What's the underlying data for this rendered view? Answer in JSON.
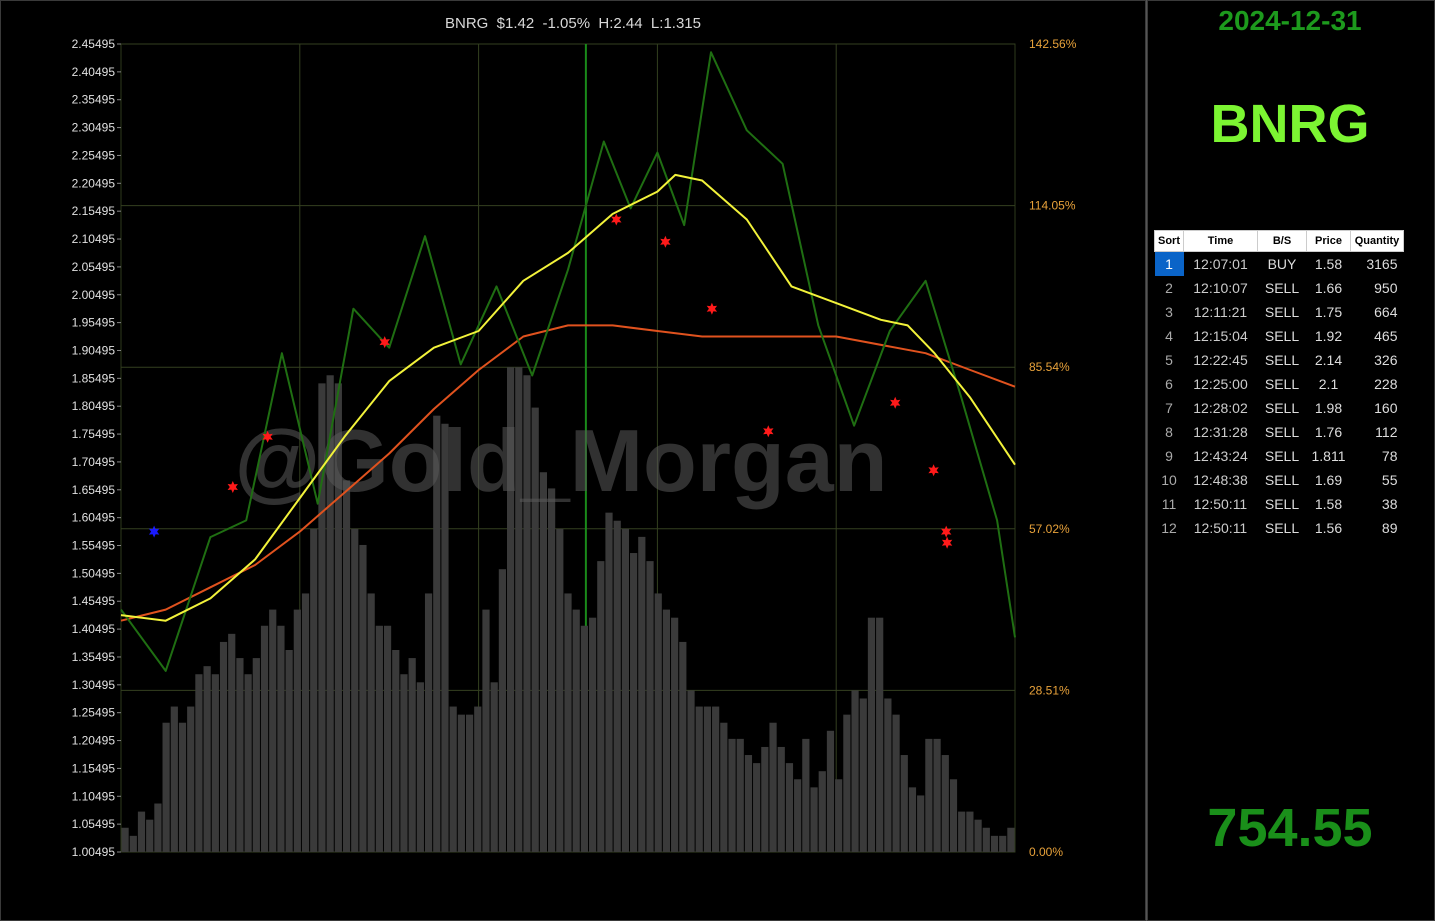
{
  "chart_title": "BNRG  $1.42  -1.05%  H:2.44  L:1.315",
  "watermark": "@Gold_Morgan",
  "side": {
    "date": "2024-12-31",
    "ticker": "BNRG",
    "value": "754.55"
  },
  "table": {
    "headers": [
      "Sort",
      "Time",
      "B/S",
      "Price",
      "Quantity"
    ],
    "rows": [
      {
        "sort": "1",
        "time": "12:07:01",
        "bs": "BUY",
        "price": "1.58",
        "qty": "3165"
      },
      {
        "sort": "2",
        "time": "12:10:07",
        "bs": "SELL",
        "price": "1.66",
        "qty": "950"
      },
      {
        "sort": "3",
        "time": "12:11:21",
        "bs": "SELL",
        "price": "1.75",
        "qty": "664"
      },
      {
        "sort": "4",
        "time": "12:15:04",
        "bs": "SELL",
        "price": "1.92",
        "qty": "465"
      },
      {
        "sort": "5",
        "time": "12:22:45",
        "bs": "SELL",
        "price": "2.14",
        "qty": "326"
      },
      {
        "sort": "6",
        "time": "12:25:00",
        "bs": "SELL",
        "price": "2.1",
        "qty": "228"
      },
      {
        "sort": "7",
        "time": "12:28:02",
        "bs": "SELL",
        "price": "1.98",
        "qty": "160"
      },
      {
        "sort": "8",
        "time": "12:31:28",
        "bs": "SELL",
        "price": "1.76",
        "qty": "112"
      },
      {
        "sort": "9",
        "time": "12:43:24",
        "bs": "SELL",
        "price": "1.811",
        "qty": "78"
      },
      {
        "sort": "10",
        "time": "12:48:38",
        "bs": "SELL",
        "price": "1.69",
        "qty": "55"
      },
      {
        "sort": "11",
        "time": "12:50:11",
        "bs": "SELL",
        "price": "1.58",
        "qty": "38"
      },
      {
        "sort": "12",
        "time": "12:50:11",
        "bs": "SELL",
        "price": "1.56",
        "qty": "89"
      }
    ]
  },
  "colors": {
    "price": "#1f6e12",
    "ma_fast": "#f2f23a",
    "ma_slow": "#e0521e",
    "volume": "#3a3a3a",
    "buy": "#1a1aff",
    "sell": "#ff1a1a",
    "right_axis": "#e8a23a",
    "grid": "#344020"
  },
  "chart_data": {
    "type": "line",
    "y_left_ticks": [
      "2.45495",
      "2.40495",
      "2.35495",
      "2.30495",
      "2.25495",
      "2.20495",
      "2.15495",
      "2.10495",
      "2.05495",
      "2.00495",
      "1.95495",
      "1.90495",
      "1.85495",
      "1.80495",
      "1.75495",
      "1.70495",
      "1.65495",
      "1.60495",
      "1.55495",
      "1.50495",
      "1.45495",
      "1.40495",
      "1.35495",
      "1.30495",
      "1.25495",
      "1.20495",
      "1.15495",
      "1.10495",
      "1.05495",
      "1.00495"
    ],
    "y_right_ticks": [
      "142.56%",
      "114.05%",
      "85.54%",
      "57.02%",
      "28.51%",
      "0.00%"
    ],
    "ylim": [
      1.00495,
      2.45495
    ],
    "x": [
      0,
      5,
      10,
      14,
      18,
      22,
      26,
      30,
      34,
      38,
      42,
      46,
      50,
      54,
      57,
      60,
      63,
      66,
      70,
      74,
      78,
      82,
      86,
      90,
      94,
      98,
      100
    ],
    "price": [
      1.44,
      1.33,
      1.57,
      1.6,
      1.9,
      1.63,
      1.98,
      1.91,
      2.11,
      1.88,
      2.02,
      1.86,
      2.05,
      2.28,
      2.16,
      2.26,
      2.13,
      2.44,
      2.3,
      2.24,
      1.95,
      1.77,
      1.94,
      2.03,
      1.82,
      1.6,
      1.39
    ],
    "ma_fast": [
      1.43,
      1.42,
      1.46,
      1.53,
      1.64,
      1.75,
      1.85,
      1.91,
      1.94,
      2.03,
      2.08,
      2.15,
      2.19,
      2.22,
      2.21,
      2.14,
      2.02,
      1.99,
      1.96,
      1.95,
      1.9,
      1.82,
      1.7
    ],
    "ma_fast_x": [
      0,
      5,
      10,
      15,
      20,
      25,
      30,
      35,
      40,
      45,
      50,
      55,
      60,
      62,
      65,
      70,
      75,
      80,
      85,
      88,
      91,
      95,
      100
    ],
    "ma_slow": [
      1.42,
      1.44,
      1.48,
      1.52,
      1.58,
      1.65,
      1.72,
      1.8,
      1.87,
      1.93,
      1.95,
      1.95,
      1.94,
      1.93,
      1.93,
      1.93,
      1.9,
      1.87,
      1.84
    ],
    "ma_slow_x": [
      0,
      5,
      10,
      15,
      20,
      25,
      30,
      35,
      40,
      45,
      50,
      55,
      60,
      65,
      70,
      80,
      90,
      95,
      100
    ],
    "volume_bars": [
      0.03,
      0.02,
      0.05,
      0.04,
      0.06,
      0.16,
      0.18,
      0.16,
      0.18,
      0.22,
      0.23,
      0.22,
      0.26,
      0.27,
      0.24,
      0.22,
      0.24,
      0.28,
      0.3,
      0.28,
      0.25,
      0.3,
      0.32,
      0.4,
      0.58,
      0.59,
      0.58,
      0.46,
      0.4,
      0.38,
      0.32,
      0.28,
      0.28,
      0.25,
      0.22,
      0.24,
      0.21,
      0.32,
      0.54,
      0.53,
      0.18,
      0.17,
      0.17,
      0.18,
      0.3,
      0.21,
      0.35,
      0.6,
      0.6,
      0.59,
      0.55,
      0.47,
      0.45,
      0.4,
      0.32,
      0.3,
      0.28,
      0.29,
      0.36,
      0.42,
      0.41,
      0.4,
      0.37,
      0.39,
      0.36,
      0.32,
      0.3,
      0.29,
      0.26,
      0.2,
      0.18,
      0.18,
      0.18,
      0.16,
      0.14,
      0.14,
      0.12,
      0.11,
      0.13,
      0.16,
      0.13,
      0.11,
      0.09,
      0.14,
      0.08,
      0.1,
      0.15,
      0.09,
      0.17,
      0.2,
      0.19,
      0.29,
      0.29,
      0.19,
      0.17,
      0.12,
      0.08,
      0.07,
      0.14,
      0.14,
      0.12,
      0.09,
      0.05,
      0.05,
      0.04,
      0.03,
      0.02,
      0.02,
      0.03
    ],
    "trades": [
      {
        "x": 3.7,
        "price": 1.58,
        "side": "buy"
      },
      {
        "x": 12.5,
        "price": 1.66,
        "side": "sell"
      },
      {
        "x": 16.4,
        "price": 1.75,
        "side": "sell"
      },
      {
        "x": 29.5,
        "price": 1.92,
        "side": "sell"
      },
      {
        "x": 55.4,
        "price": 2.14,
        "side": "sell"
      },
      {
        "x": 60.9,
        "price": 2.1,
        "side": "sell"
      },
      {
        "x": 66.1,
        "price": 1.98,
        "side": "sell"
      },
      {
        "x": 72.4,
        "price": 1.76,
        "side": "sell"
      },
      {
        "x": 86.6,
        "price": 1.811,
        "side": "sell"
      },
      {
        "x": 90.9,
        "price": 1.69,
        "side": "sell"
      },
      {
        "x": 92.3,
        "price": 1.58,
        "side": "sell"
      },
      {
        "x": 92.4,
        "price": 1.56,
        "side": "sell"
      }
    ]
  }
}
